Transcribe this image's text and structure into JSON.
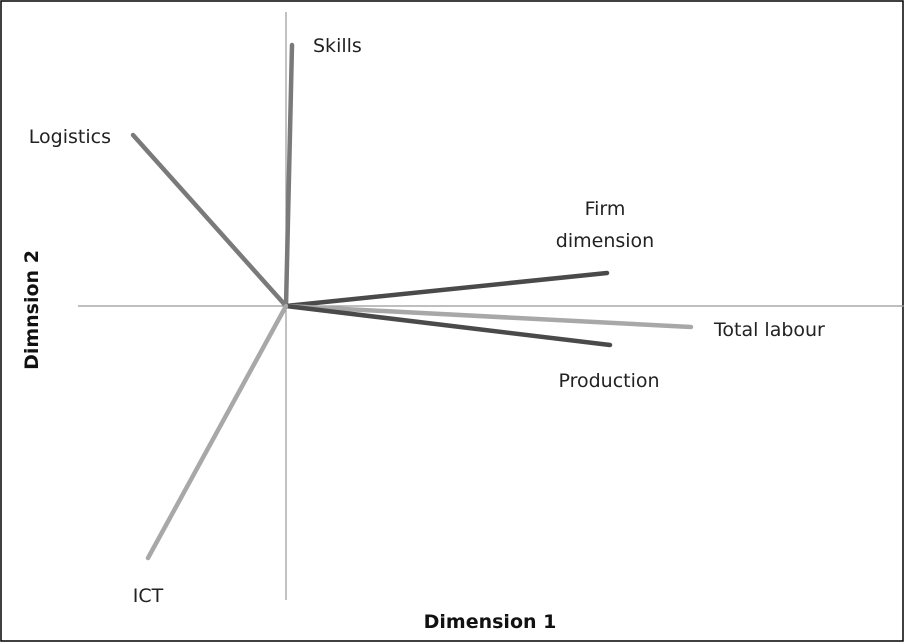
{
  "chart_data": {
    "type": "biplot",
    "xlabel": "Dimension 1",
    "ylabel": "Dimnsion 2",
    "xlim": [
      -0.92,
      2.06
    ],
    "ylim": [
      -0.98,
      0.98
    ],
    "series": [
      {
        "name": "Skills",
        "color": "#7a7a7a",
        "x": 0.02,
        "y": 0.87
      },
      {
        "name": "Logistics",
        "color": "#7a7a7a",
        "x": -0.51,
        "y": 0.57
      },
      {
        "name": "Firm dimension",
        "color": "#4a4a4a",
        "x": 1.07,
        "y": 0.11
      },
      {
        "name": "Total labour",
        "color": "#a8a8a8",
        "x": 1.35,
        "y": -0.07
      },
      {
        "name": "Production",
        "color": "#4a4a4a",
        "x": 1.08,
        "y": -0.13
      },
      {
        "name": "ICT",
        "color": "#a8a8a8",
        "x": -0.46,
        "y": -0.84
      }
    ]
  }
}
